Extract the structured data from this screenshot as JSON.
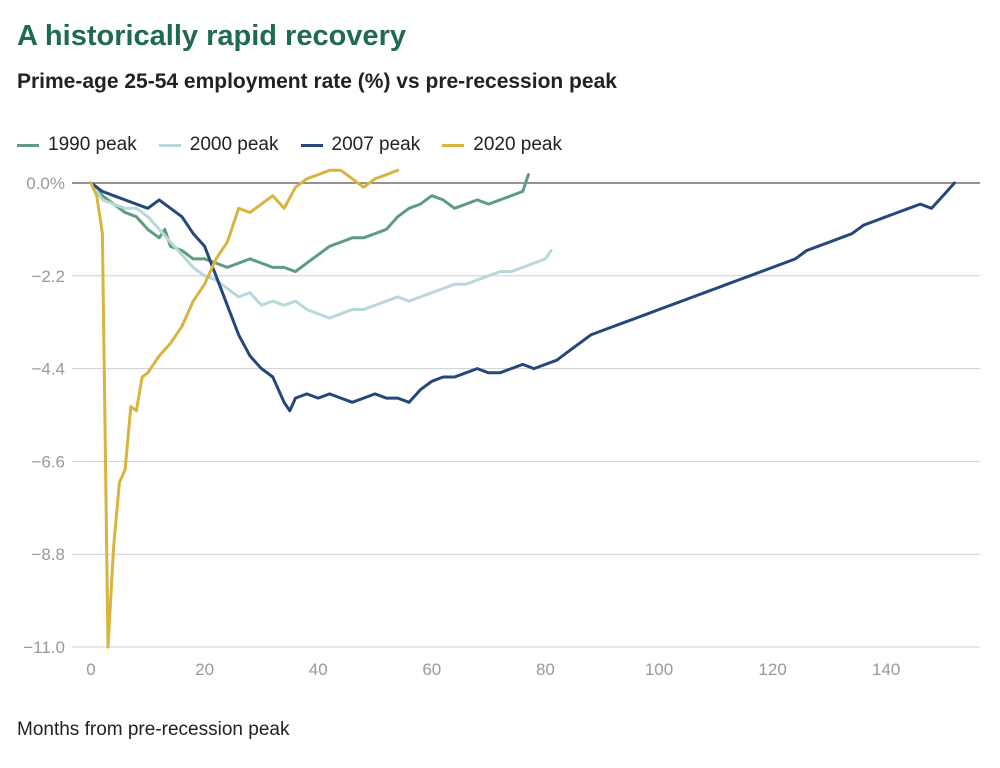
{
  "chart_data": {
    "type": "line",
    "title": "A historically rapid recovery",
    "subtitle": "Prime-age 25-54 employment rate (%) vs pre-recession peak",
    "xlabel": "Months from pre-recession peak",
    "ylabel": "",
    "xlim": [
      0,
      155
    ],
    "ylim": [
      -11.0,
      0.0
    ],
    "xticks": [
      0,
      20,
      40,
      60,
      80,
      100,
      120,
      140
    ],
    "yticks": [
      0.0,
      -2.2,
      -4.4,
      -6.6,
      -8.8,
      -11.0
    ],
    "ytick_labels": [
      "0.0%",
      "−2.2",
      "−4.4",
      "−6.6",
      "−8.8",
      "−11.0"
    ],
    "grid": true,
    "legend_position": "top-left",
    "series": [
      {
        "name": "1990 peak",
        "color": "#5e9c7f",
        "points": [
          [
            0,
            0
          ],
          [
            2,
            -0.3
          ],
          [
            4,
            -0.5
          ],
          [
            6,
            -0.7
          ],
          [
            8,
            -0.8
          ],
          [
            10,
            -1.1
          ],
          [
            12,
            -1.3
          ],
          [
            13,
            -1.1
          ],
          [
            14,
            -1.5
          ],
          [
            16,
            -1.6
          ],
          [
            18,
            -1.8
          ],
          [
            20,
            -1.8
          ],
          [
            22,
            -1.9
          ],
          [
            24,
            -2.0
          ],
          [
            26,
            -1.9
          ],
          [
            28,
            -1.8
          ],
          [
            30,
            -1.9
          ],
          [
            32,
            -2.0
          ],
          [
            34,
            -2.0
          ],
          [
            36,
            -2.1
          ],
          [
            38,
            -1.9
          ],
          [
            40,
            -1.7
          ],
          [
            42,
            -1.5
          ],
          [
            44,
            -1.4
          ],
          [
            46,
            -1.3
          ],
          [
            48,
            -1.3
          ],
          [
            50,
            -1.2
          ],
          [
            52,
            -1.1
          ],
          [
            54,
            -0.8
          ],
          [
            56,
            -0.6
          ],
          [
            58,
            -0.5
          ],
          [
            60,
            -0.3
          ],
          [
            62,
            -0.4
          ],
          [
            64,
            -0.6
          ],
          [
            66,
            -0.5
          ],
          [
            68,
            -0.4
          ],
          [
            70,
            -0.5
          ],
          [
            72,
            -0.4
          ],
          [
            74,
            -0.3
          ],
          [
            76,
            -0.2
          ],
          [
            77,
            0.2
          ]
        ]
      },
      {
        "name": "2000 peak",
        "color": "#b9d8dc",
        "points": [
          [
            0,
            0
          ],
          [
            2,
            -0.4
          ],
          [
            4,
            -0.5
          ],
          [
            6,
            -0.6
          ],
          [
            8,
            -0.6
          ],
          [
            10,
            -0.8
          ],
          [
            12,
            -1.1
          ],
          [
            14,
            -1.4
          ],
          [
            16,
            -1.7
          ],
          [
            18,
            -2.0
          ],
          [
            20,
            -2.2
          ],
          [
            22,
            -2.3
          ],
          [
            24,
            -2.5
          ],
          [
            26,
            -2.7
          ],
          [
            28,
            -2.6
          ],
          [
            30,
            -2.9
          ],
          [
            32,
            -2.8
          ],
          [
            34,
            -2.9
          ],
          [
            36,
            -2.8
          ],
          [
            38,
            -3.0
          ],
          [
            40,
            -3.1
          ],
          [
            42,
            -3.2
          ],
          [
            44,
            -3.1
          ],
          [
            46,
            -3.0
          ],
          [
            48,
            -3.0
          ],
          [
            50,
            -2.9
          ],
          [
            52,
            -2.8
          ],
          [
            54,
            -2.7
          ],
          [
            56,
            -2.8
          ],
          [
            58,
            -2.7
          ],
          [
            60,
            -2.6
          ],
          [
            62,
            -2.5
          ],
          [
            64,
            -2.4
          ],
          [
            66,
            -2.4
          ],
          [
            68,
            -2.3
          ],
          [
            70,
            -2.2
          ],
          [
            72,
            -2.1
          ],
          [
            74,
            -2.1
          ],
          [
            76,
            -2.0
          ],
          [
            78,
            -1.9
          ],
          [
            80,
            -1.8
          ],
          [
            81,
            -1.6
          ]
        ]
      },
      {
        "name": "2007 peak",
        "color": "#26477a",
        "points": [
          [
            0,
            0
          ],
          [
            2,
            -0.2
          ],
          [
            4,
            -0.3
          ],
          [
            6,
            -0.4
          ],
          [
            8,
            -0.5
          ],
          [
            10,
            -0.6
          ],
          [
            12,
            -0.4
          ],
          [
            14,
            -0.6
          ],
          [
            16,
            -0.8
          ],
          [
            18,
            -1.2
          ],
          [
            20,
            -1.5
          ],
          [
            22,
            -2.2
          ],
          [
            24,
            -2.9
          ],
          [
            26,
            -3.6
          ],
          [
            28,
            -4.1
          ],
          [
            30,
            -4.4
          ],
          [
            32,
            -4.6
          ],
          [
            34,
            -5.2
          ],
          [
            35,
            -5.4
          ],
          [
            36,
            -5.1
          ],
          [
            38,
            -5.0
          ],
          [
            40,
            -5.1
          ],
          [
            42,
            -5.0
          ],
          [
            44,
            -5.1
          ],
          [
            46,
            -5.2
          ],
          [
            48,
            -5.1
          ],
          [
            50,
            -5.0
          ],
          [
            52,
            -5.1
          ],
          [
            54,
            -5.1
          ],
          [
            56,
            -5.2
          ],
          [
            58,
            -4.9
          ],
          [
            60,
            -4.7
          ],
          [
            62,
            -4.6
          ],
          [
            64,
            -4.6
          ],
          [
            66,
            -4.5
          ],
          [
            68,
            -4.4
          ],
          [
            70,
            -4.5
          ],
          [
            72,
            -4.5
          ],
          [
            74,
            -4.4
          ],
          [
            76,
            -4.3
          ],
          [
            78,
            -4.4
          ],
          [
            80,
            -4.3
          ],
          [
            82,
            -4.2
          ],
          [
            84,
            -4.0
          ],
          [
            86,
            -3.8
          ],
          [
            88,
            -3.6
          ],
          [
            90,
            -3.5
          ],
          [
            92,
            -3.4
          ],
          [
            94,
            -3.3
          ],
          [
            96,
            -3.2
          ],
          [
            98,
            -3.1
          ],
          [
            100,
            -3.0
          ],
          [
            102,
            -2.9
          ],
          [
            104,
            -2.8
          ],
          [
            106,
            -2.7
          ],
          [
            108,
            -2.6
          ],
          [
            110,
            -2.5
          ],
          [
            112,
            -2.4
          ],
          [
            114,
            -2.3
          ],
          [
            116,
            -2.2
          ],
          [
            118,
            -2.1
          ],
          [
            120,
            -2.0
          ],
          [
            122,
            -1.9
          ],
          [
            124,
            -1.8
          ],
          [
            126,
            -1.6
          ],
          [
            128,
            -1.5
          ],
          [
            130,
            -1.4
          ],
          [
            132,
            -1.3
          ],
          [
            134,
            -1.2
          ],
          [
            136,
            -1.0
          ],
          [
            138,
            -0.9
          ],
          [
            140,
            -0.8
          ],
          [
            142,
            -0.7
          ],
          [
            144,
            -0.6
          ],
          [
            146,
            -0.5
          ],
          [
            148,
            -0.6
          ],
          [
            150,
            -0.3
          ],
          [
            152,
            0.0
          ]
        ]
      },
      {
        "name": "2020 peak",
        "color": "#d9b43f",
        "points": [
          [
            0,
            0
          ],
          [
            1,
            -0.3
          ],
          [
            2,
            -1.2
          ],
          [
            3,
            -11.0
          ],
          [
            4,
            -8.6
          ],
          [
            5,
            -7.1
          ],
          [
            6,
            -6.8
          ],
          [
            7,
            -5.3
          ],
          [
            8,
            -5.4
          ],
          [
            9,
            -4.6
          ],
          [
            10,
            -4.5
          ],
          [
            12,
            -4.1
          ],
          [
            14,
            -3.8
          ],
          [
            16,
            -3.4
          ],
          [
            18,
            -2.8
          ],
          [
            20,
            -2.4
          ],
          [
            22,
            -1.8
          ],
          [
            24,
            -1.4
          ],
          [
            26,
            -0.6
          ],
          [
            28,
            -0.7
          ],
          [
            30,
            -0.5
          ],
          [
            32,
            -0.3
          ],
          [
            34,
            -0.6
          ],
          [
            36,
            -0.1
          ],
          [
            38,
            0.1
          ],
          [
            40,
            0.2
          ],
          [
            42,
            0.3
          ],
          [
            44,
            0.3
          ],
          [
            46,
            0.1
          ],
          [
            48,
            -0.1
          ],
          [
            50,
            0.1
          ],
          [
            52,
            0.2
          ],
          [
            54,
            0.3
          ]
        ]
      }
    ]
  }
}
